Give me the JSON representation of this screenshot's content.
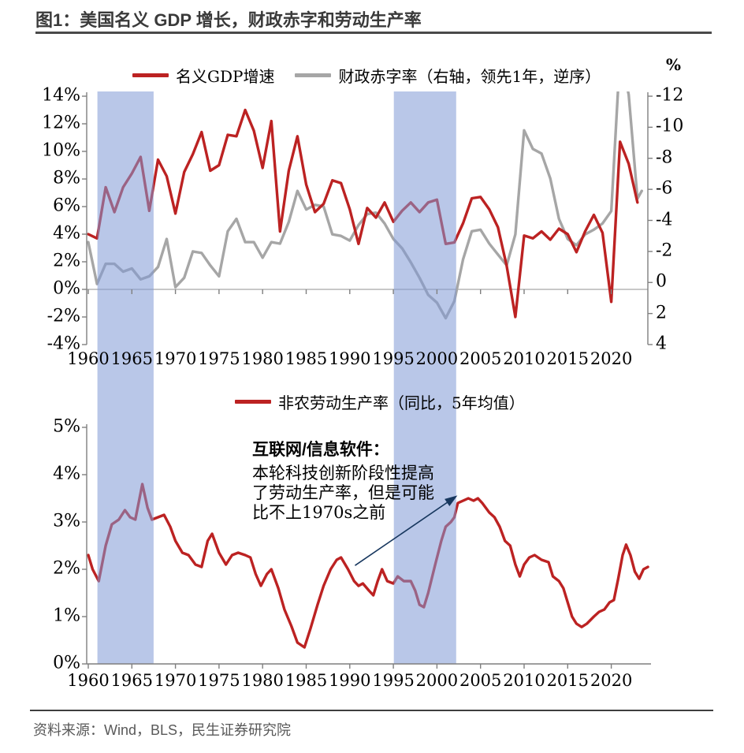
{
  "title": "图1：美国名义 GDP 增长，财政赤字和劳动生产率",
  "percent_label": "%",
  "footer": {
    "source": "资料来源：Wind，BLS，民生证券研究院"
  },
  "colors": {
    "red": "#BC2222",
    "gray": "#A6A6A6",
    "band": "#8099D5",
    "band_opacity": 0.55,
    "band_apparent": "#B9C7E8",
    "arrow": "#17375E",
    "axis": "#7F7F7F",
    "zero_line": "#A6A6A6",
    "title_color": "#3A3A3A",
    "footer_color": "#595959"
  },
  "chart_data": [
    {
      "type": "line",
      "title": "",
      "legend": [
        {
          "label": "名义GDP增速",
          "color": "#BC2222"
        },
        {
          "label": "财政赤字率（右轴，领先1年，逆序）",
          "color": "#A6A6A6"
        }
      ],
      "x_ticks": [
        1960,
        1965,
        1970,
        1975,
        1980,
        1985,
        1990,
        1995,
        2000,
        2005,
        2010,
        2015,
        2020
      ],
      "x_range": [
        1960,
        2023.6
      ],
      "y_left": {
        "ticks": [
          "14%",
          "12%",
          "10%",
          "8%",
          "6%",
          "4%",
          "2%",
          "0%",
          "-2%",
          "-4%"
        ],
        "tick_values": [
          14,
          12,
          10,
          8,
          6,
          4,
          2,
          0,
          -2,
          -4
        ],
        "range": [
          -4,
          14
        ],
        "grid": "zero-line-only"
      },
      "y_right": {
        "ticks": [
          "-12",
          "-10",
          "-8",
          "-6",
          "-4",
          "-2",
          "0",
          "2",
          "4"
        ],
        "tick_values": [
          -12,
          -10,
          -8,
          -6,
          -4,
          -2,
          0,
          2,
          4
        ],
        "range": [
          -12,
          4
        ],
        "inverted": true,
        "unit": "%"
      },
      "highlight_bands": [
        [
          1961.05,
          1967.5
        ],
        [
          1995.05,
          2002.2
        ]
      ],
      "series": [
        {
          "name": "名义GDP增速",
          "axis": "left",
          "color": "#BC2222",
          "width": 3.4,
          "points": [
            [
              1960,
              4.0
            ],
            [
              1961,
              3.7
            ],
            [
              1962,
              7.4
            ],
            [
              1963,
              5.6
            ],
            [
              1964,
              7.4
            ],
            [
              1965,
              8.4
            ],
            [
              1966,
              9.6
            ],
            [
              1967,
              5.7
            ],
            [
              1968,
              9.4
            ],
            [
              1969,
              8.2
            ],
            [
              1970,
              5.5
            ],
            [
              1971,
              8.5
            ],
            [
              1972,
              9.8
            ],
            [
              1973,
              11.4
            ],
            [
              1974,
              8.6
            ],
            [
              1975,
              9.0
            ],
            [
              1976,
              11.2
            ],
            [
              1977,
              11.1
            ],
            [
              1978,
              13.0
            ],
            [
              1979,
              11.5
            ],
            [
              1980,
              8.8
            ],
            [
              1981,
              12.2
            ],
            [
              1982,
              4.2
            ],
            [
              1983,
              8.6
            ],
            [
              1984,
              11.1
            ],
            [
              1985,
              7.6
            ],
            [
              1986,
              5.6
            ],
            [
              1987,
              6.2
            ],
            [
              1988,
              7.9
            ],
            [
              1989,
              7.7
            ],
            [
              1990,
              5.8
            ],
            [
              1991,
              3.3
            ],
            [
              1992,
              5.9
            ],
            [
              1993,
              5.2
            ],
            [
              1994,
              6.3
            ],
            [
              1995,
              4.9
            ],
            [
              1996,
              5.7
            ],
            [
              1997,
              6.3
            ],
            [
              1998,
              5.6
            ],
            [
              1999,
              6.3
            ],
            [
              2000,
              6.5
            ],
            [
              2001,
              3.3
            ],
            [
              2002,
              3.4
            ],
            [
              2003,
              4.8
            ],
            [
              2004,
              6.6
            ],
            [
              2005,
              6.7
            ],
            [
              2006,
              5.8
            ],
            [
              2007,
              4.5
            ],
            [
              2008,
              1.7
            ],
            [
              2009,
              -2.0
            ],
            [
              2010,
              3.9
            ],
            [
              2011,
              3.7
            ],
            [
              2012,
              4.2
            ],
            [
              2013,
              3.6
            ],
            [
              2014,
              4.4
            ],
            [
              2015,
              4.0
            ],
            [
              2016,
              2.7
            ],
            [
              2017,
              4.2
            ],
            [
              2018,
              5.4
            ],
            [
              2019,
              4.1
            ],
            [
              2020,
              -0.9
            ],
            [
              2021,
              10.7
            ],
            [
              2022,
              9.1
            ],
            [
              2023,
              6.3
            ]
          ]
        },
        {
          "name": "财政赤字率（右轴，领先1年，逆序）",
          "axis": "right",
          "color": "#A6A6A6",
          "width": 3.4,
          "points": [
            [
              1960,
              -2.6
            ],
            [
              1961,
              0.1
            ],
            [
              1962,
              -1.2
            ],
            [
              1963,
              -1.2
            ],
            [
              1964,
              -0.7
            ],
            [
              1965,
              -0.9
            ],
            [
              1966,
              -0.2
            ],
            [
              1967,
              -0.4
            ],
            [
              1968,
              -1.0
            ],
            [
              1969,
              -2.8
            ],
            [
              1970,
              0.3
            ],
            [
              1971,
              -0.3
            ],
            [
              1972,
              -2.0
            ],
            [
              1973,
              -1.9
            ],
            [
              1974,
              -1.1
            ],
            [
              1975,
              -0.4
            ],
            [
              1976,
              -3.3
            ],
            [
              1977,
              -4.1
            ],
            [
              1978,
              -2.6
            ],
            [
              1979,
              -2.6
            ],
            [
              1980,
              -1.6
            ],
            [
              1981,
              -2.6
            ],
            [
              1982,
              -2.5
            ],
            [
              1983,
              -3.9
            ],
            [
              1984,
              -5.9
            ],
            [
              1985,
              -4.7
            ],
            [
              1986,
              -5.0
            ],
            [
              1987,
              -4.9
            ],
            [
              1988,
              -3.1
            ],
            [
              1989,
              -3.0
            ],
            [
              1990,
              -2.7
            ],
            [
              1991,
              -3.7
            ],
            [
              1992,
              -4.4
            ],
            [
              1993,
              -4.5
            ],
            [
              1994,
              -3.8
            ],
            [
              1995,
              -2.8
            ],
            [
              1996,
              -2.2
            ],
            [
              1997,
              -1.3
            ],
            [
              1998,
              -0.3
            ],
            [
              1999,
              0.8
            ],
            [
              2000,
              1.3
            ],
            [
              2001,
              2.3
            ],
            [
              2002,
              1.2
            ],
            [
              2003,
              -1.5
            ],
            [
              2004,
              -3.3
            ],
            [
              2005,
              -3.4
            ],
            [
              2006,
              -2.5
            ],
            [
              2007,
              -1.8
            ],
            [
              2008,
              -1.1
            ],
            [
              2009,
              -3.1
            ],
            [
              2010,
              -9.8
            ],
            [
              2011,
              -8.6
            ],
            [
              2012,
              -8.3
            ],
            [
              2013,
              -6.7
            ],
            [
              2014,
              -4.1
            ],
            [
              2015,
              -2.8
            ],
            [
              2016,
              -2.4
            ],
            [
              2017,
              -3.1
            ],
            [
              2018,
              -3.4
            ],
            [
              2019,
              -3.8
            ],
            [
              2020,
              -4.6
            ],
            [
              2021,
              -14.7
            ],
            [
              2022,
              -12.1
            ],
            [
              2023,
              -5.4
            ],
            [
              2023.5,
              -5.9
            ]
          ]
        }
      ]
    },
    {
      "type": "line",
      "title": "",
      "legend": [
        {
          "label": "非农劳动生产率（同比，5年均值）",
          "color": "#BC2222"
        }
      ],
      "x_ticks": [
        1960,
        1965,
        1970,
        1975,
        1980,
        1985,
        1990,
        1995,
        2000,
        2005,
        2010,
        2015,
        2020
      ],
      "x_range": [
        1960,
        2024.5
      ],
      "y_left": {
        "ticks": [
          "5%",
          "4%",
          "3%",
          "2%",
          "1%",
          "0%"
        ],
        "tick_values": [
          5,
          4,
          3,
          2,
          1,
          0
        ],
        "range": [
          0,
          5
        ],
        "grid": "off"
      },
      "highlight_bands": [
        [
          1961.05,
          1967.5
        ],
        [
          1995.05,
          2002.2
        ]
      ],
      "series": [
        {
          "name": "非农劳动生产率（同比，5年均值）",
          "axis": "left",
          "color": "#BC2222",
          "width": 3.4,
          "points": [
            [
              1960,
              2.3
            ],
            [
              1960.5,
              2.0
            ],
            [
              1961.2,
              1.75
            ],
            [
              1962,
              2.5
            ],
            [
              1962.7,
              2.95
            ],
            [
              1963.5,
              3.05
            ],
            [
              1964.2,
              3.25
            ],
            [
              1964.8,
              3.1
            ],
            [
              1965.4,
              3.05
            ],
            [
              1966.2,
              3.8
            ],
            [
              1966.8,
              3.3
            ],
            [
              1967.3,
              3.05
            ],
            [
              1968,
              3.1
            ],
            [
              1968.7,
              3.15
            ],
            [
              1969.4,
              2.9
            ],
            [
              1970,
              2.6
            ],
            [
              1970.8,
              2.35
            ],
            [
              1971.5,
              2.3
            ],
            [
              1972.3,
              2.1
            ],
            [
              1973,
              2.05
            ],
            [
              1973.7,
              2.6
            ],
            [
              1974.2,
              2.75
            ],
            [
              1975,
              2.35
            ],
            [
              1975.8,
              2.1
            ],
            [
              1976.5,
              2.3
            ],
            [
              1977.2,
              2.35
            ],
            [
              1978,
              2.3
            ],
            [
              1978.6,
              2.25
            ],
            [
              1979.2,
              1.9
            ],
            [
              1979.8,
              1.65
            ],
            [
              1980.5,
              1.9
            ],
            [
              1981,
              2.0
            ],
            [
              1981.8,
              1.6
            ],
            [
              1982.5,
              1.15
            ],
            [
              1983.3,
              0.8
            ],
            [
              1984,
              0.45
            ],
            [
              1984.8,
              0.35
            ],
            [
              1985.5,
              0.75
            ],
            [
              1986.3,
              1.25
            ],
            [
              1987,
              1.65
            ],
            [
              1987.8,
              2.0
            ],
            [
              1988.5,
              2.2
            ],
            [
              1989,
              2.25
            ],
            [
              1989.8,
              2.0
            ],
            [
              1990.5,
              1.75
            ],
            [
              1991,
              1.65
            ],
            [
              1991.5,
              1.7
            ],
            [
              1992.2,
              1.55
            ],
            [
              1992.7,
              1.45
            ],
            [
              1993.2,
              1.75
            ],
            [
              1993.7,
              2.0
            ],
            [
              1994.3,
              1.75
            ],
            [
              1995,
              1.7
            ],
            [
              1995.5,
              1.85
            ],
            [
              1996.2,
              1.75
            ],
            [
              1997,
              1.75
            ],
            [
              1997.5,
              1.55
            ],
            [
              1998,
              1.25
            ],
            [
              1998.5,
              1.2
            ],
            [
              1999,
              1.5
            ],
            [
              1999.8,
              2.1
            ],
            [
              2000.5,
              2.6
            ],
            [
              2001,
              2.9
            ],
            [
              2001.6,
              3.0
            ],
            [
              2002,
              3.1
            ],
            [
              2002.4,
              3.4
            ],
            [
              2003,
              3.45
            ],
            [
              2003.6,
              3.5
            ],
            [
              2004.2,
              3.45
            ],
            [
              2004.7,
              3.5
            ],
            [
              2005.2,
              3.4
            ],
            [
              2006,
              3.2
            ],
            [
              2006.6,
              3.1
            ],
            [
              2007.2,
              2.9
            ],
            [
              2007.8,
              2.6
            ],
            [
              2008.4,
              2.5
            ],
            [
              2009,
              2.1
            ],
            [
              2009.5,
              1.85
            ],
            [
              2010,
              2.1
            ],
            [
              2010.6,
              2.25
            ],
            [
              2011.2,
              2.3
            ],
            [
              2012,
              2.2
            ],
            [
              2012.8,
              2.15
            ],
            [
              2013.3,
              1.85
            ],
            [
              2014,
              1.75
            ],
            [
              2014.5,
              1.6
            ],
            [
              2015,
              1.3
            ],
            [
              2015.5,
              1.0
            ],
            [
              2016,
              0.85
            ],
            [
              2016.6,
              0.78
            ],
            [
              2017.2,
              0.85
            ],
            [
              2018,
              1.0
            ],
            [
              2018.6,
              1.1
            ],
            [
              2019.2,
              1.15
            ],
            [
              2019.8,
              1.3
            ],
            [
              2020.3,
              1.35
            ],
            [
              2020.8,
              1.8
            ],
            [
              2021.3,
              2.3
            ],
            [
              2021.7,
              2.52
            ],
            [
              2022.2,
              2.3
            ],
            [
              2022.7,
              1.95
            ],
            [
              2023.2,
              1.8
            ],
            [
              2023.7,
              2.0
            ],
            [
              2024.2,
              2.05
            ]
          ]
        }
      ],
      "annotation": {
        "title": "互联网/信息软件：",
        "lines": [
          "本轮科技创新阶段性提高",
          "了劳动生产率，但是可能",
          "比不上1970s之前"
        ],
        "arrow": {
          "from_year": 1990.6,
          "from_value": 2.08,
          "to_year": 2002.35,
          "to_value": 3.56
        }
      }
    }
  ]
}
